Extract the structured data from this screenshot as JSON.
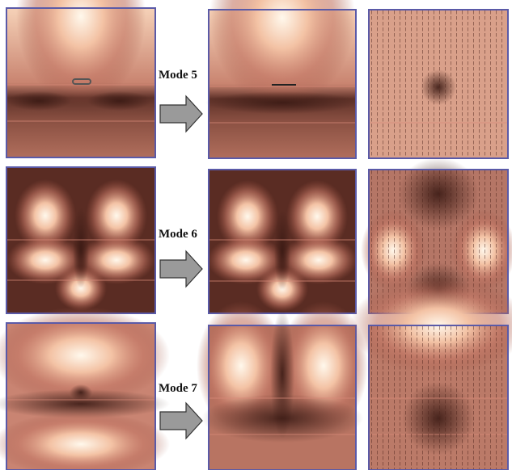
{
  "rows": [
    {
      "label": "Mode 5"
    },
    {
      "label": "Mode 6"
    },
    {
      "label": "Mode 7"
    }
  ]
}
